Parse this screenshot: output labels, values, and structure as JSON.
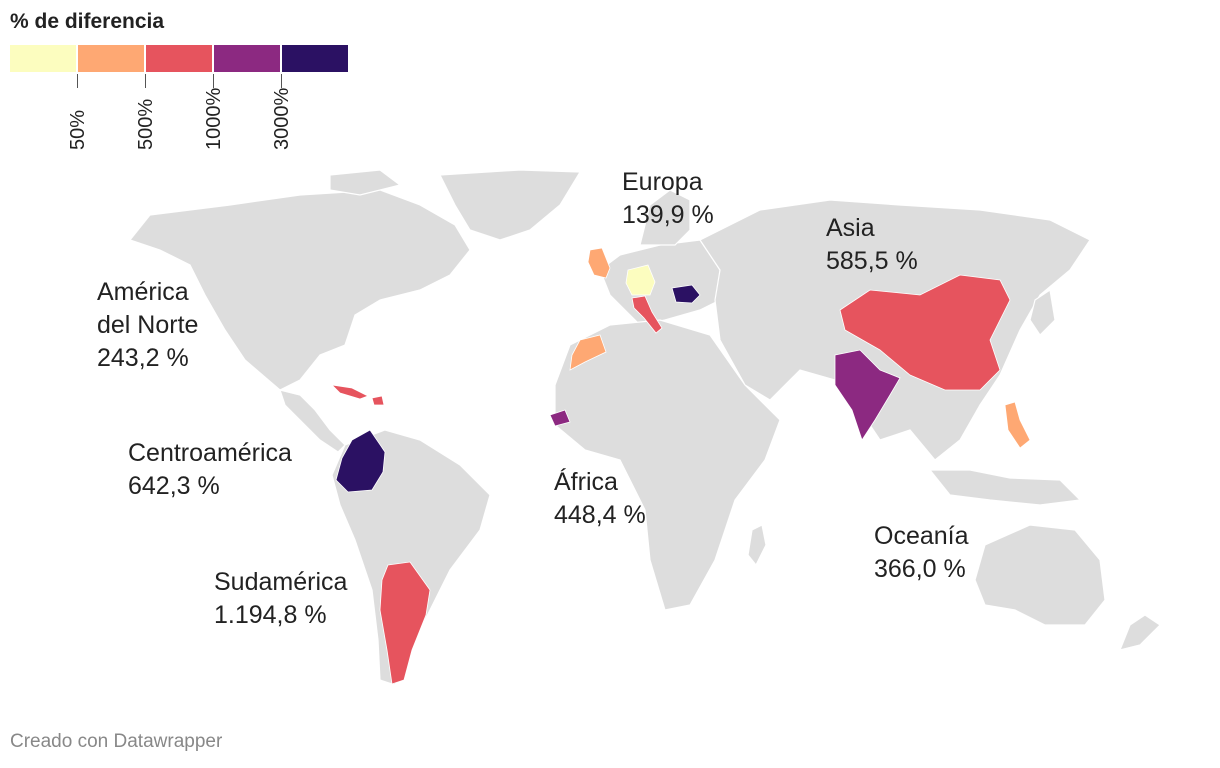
{
  "legend": {
    "title": "% de diferencia",
    "colors": [
      "#fcfdbf",
      "#fea873",
      "#e6545e",
      "#8c2981",
      "#2b1163"
    ],
    "ticks": [
      "50%",
      "500%",
      "1000%",
      "3000%"
    ]
  },
  "regions": {
    "north_america": {
      "name_line1": "América",
      "name_line2": "del Norte",
      "value": "243,2 %"
    },
    "europe": {
      "name": "Europa",
      "value": "139,9 %"
    },
    "asia": {
      "name": "Asia",
      "value": "585,5 %"
    },
    "central_america": {
      "name": "Centroamérica",
      "value": "642,3 %"
    },
    "africa": {
      "name": "África",
      "value": "448,4 %"
    },
    "south_america": {
      "name": "Sudamérica",
      "value": "1.194,8 %"
    },
    "oceania": {
      "name": "Oceanía",
      "value": "366,0 %"
    }
  },
  "countries": [
    {
      "name": "Germany",
      "color": "#fcfdbf"
    },
    {
      "name": "United Kingdom",
      "color": "#fea873"
    },
    {
      "name": "Morocco",
      "color": "#fea873"
    },
    {
      "name": "Philippines",
      "color": "#fea873"
    },
    {
      "name": "Italy",
      "color": "#e6545e"
    },
    {
      "name": "China",
      "color": "#e6545e"
    },
    {
      "name": "Cuba",
      "color": "#e6545e"
    },
    {
      "name": "Dominican Republic",
      "color": "#e6545e"
    },
    {
      "name": "Argentina",
      "color": "#e6545e"
    },
    {
      "name": "India",
      "color": "#8c2981"
    },
    {
      "name": "Senegal",
      "color": "#8c2981"
    },
    {
      "name": "Romania",
      "color": "#2b1163"
    },
    {
      "name": "Colombia",
      "color": "#2b1163"
    }
  ],
  "land_color": "#dddddd",
  "credit": "Creado con Datawrapper"
}
